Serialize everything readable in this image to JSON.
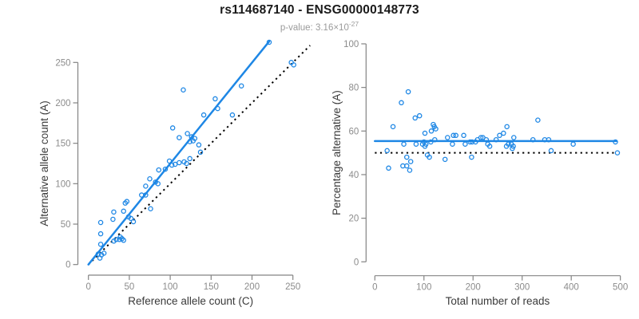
{
  "header": {
    "title": "rs114687140 - ENSG00000148773",
    "subtitle_prefix": "p-value: 3.16×10",
    "subtitle_exponent": "-27"
  },
  "colors": {
    "accent_blue": "#1E87E5",
    "reference_line_black": "#000000",
    "axis_line_gray": "#848484",
    "tick_label_gray": "#8C8C8C",
    "axis_title_dark": "#3A3A3A",
    "title_black": "#1A1A1A",
    "subtitle_gray": "#9B9B9B"
  },
  "chart_data": [
    {
      "type": "scatter",
      "name": "allele-counts-scatter",
      "xlabel": "Reference allele count (C)",
      "ylabel": "Alternative allele count (A)",
      "xlim": [
        0,
        265
      ],
      "ylim": [
        0,
        280
      ],
      "xticks": [
        0,
        50,
        100,
        150,
        200,
        250
      ],
      "yticks": [
        0,
        50,
        100,
        150,
        200,
        250
      ],
      "grid": false,
      "legend": null,
      "points": [
        [
          12,
          13
        ],
        [
          16,
          12
        ],
        [
          19,
          14
        ],
        [
          14,
          8
        ],
        [
          15,
          25
        ],
        [
          15,
          38
        ],
        [
          15,
          52
        ],
        [
          31,
          29
        ],
        [
          34,
          31
        ],
        [
          38,
          31
        ],
        [
          41,
          32
        ],
        [
          43,
          30
        ],
        [
          39,
          34
        ],
        [
          30,
          56
        ],
        [
          31,
          65
        ],
        [
          43,
          66
        ],
        [
          45,
          76
        ],
        [
          47,
          78
        ],
        [
          49,
          59
        ],
        [
          52,
          57
        ],
        [
          55,
          53
        ],
        [
          65,
          86
        ],
        [
          70,
          86
        ],
        [
          70,
          97
        ],
        [
          76,
          69
        ],
        [
          75,
          106
        ],
        [
          82,
          102
        ],
        [
          85,
          100
        ],
        [
          86,
          117
        ],
        [
          94,
          118
        ],
        [
          99,
          128
        ],
        [
          102,
          123
        ],
        [
          106,
          124
        ],
        [
          111,
          126
        ],
        [
          117,
          127
        ],
        [
          120,
          125
        ],
        [
          124,
          131
        ],
        [
          103,
          169
        ],
        [
          111,
          157
        ],
        [
          121,
          162
        ],
        [
          124,
          152
        ],
        [
          126,
          158
        ],
        [
          128,
          153
        ],
        [
          130,
          156
        ],
        [
          135,
          148
        ],
        [
          137,
          139
        ],
        [
          116,
          216
        ],
        [
          141,
          185
        ],
        [
          155,
          205
        ],
        [
          158,
          193
        ],
        [
          176,
          185
        ],
        [
          187,
          221
        ],
        [
          221,
          275
        ],
        [
          248,
          250
        ],
        [
          251,
          247
        ]
      ],
      "fit_line": {
        "x1": 0,
        "y1": 0,
        "x2": 221,
        "y2": 276,
        "style": "solid"
      },
      "identity_line": {
        "x1": 0,
        "y1": 0,
        "x2": 271,
        "y2": 271,
        "style": "dotted"
      }
    },
    {
      "type": "scatter",
      "name": "percentage-alternative-scatter",
      "xlabel": "Total number of reads",
      "ylabel": "Percentage alternative (A)",
      "xlim": [
        0,
        505
      ],
      "ylim": [
        0,
        100
      ],
      "xticks": [
        0,
        100,
        200,
        300,
        400,
        500
      ],
      "yticks": [
        0,
        20,
        40,
        60,
        80,
        100
      ],
      "grid": false,
      "legend": null,
      "points": [
        [
          25,
          51
        ],
        [
          28,
          43
        ],
        [
          37,
          62
        ],
        [
          54,
          73
        ],
        [
          68,
          78
        ],
        [
          57,
          44
        ],
        [
          59,
          54
        ],
        [
          65,
          48
        ],
        [
          65,
          44
        ],
        [
          71,
          42
        ],
        [
          73,
          46
        ],
        [
          82,
          66
        ],
        [
          84,
          54
        ],
        [
          91,
          67
        ],
        [
          97,
          54
        ],
        [
          100,
          55
        ],
        [
          102,
          53
        ],
        [
          104,
          54
        ],
        [
          102,
          59
        ],
        [
          107,
          49
        ],
        [
          111,
          48
        ],
        [
          114,
          55
        ],
        [
          115,
          60
        ],
        [
          119,
          63
        ],
        [
          121,
          62
        ],
        [
          124,
          61
        ],
        [
          122,
          56
        ],
        [
          143,
          47
        ],
        [
          148,
          57
        ],
        [
          158,
          54
        ],
        [
          160,
          58
        ],
        [
          165,
          58
        ],
        [
          181,
          58
        ],
        [
          184,
          54
        ],
        [
          194,
          55
        ],
        [
          197,
          48
        ],
        [
          198,
          55
        ],
        [
          205,
          55
        ],
        [
          209,
          56
        ],
        [
          216,
          57
        ],
        [
          220,
          57
        ],
        [
          227,
          56
        ],
        [
          230,
          54
        ],
        [
          234,
          53
        ],
        [
          247,
          56
        ],
        [
          254,
          58
        ],
        [
          262,
          59
        ],
        [
          269,
          62
        ],
        [
          268,
          53
        ],
        [
          272,
          54
        ],
        [
          278,
          54
        ],
        [
          280,
          52
        ],
        [
          282,
          53
        ],
        [
          283,
          57
        ],
        [
          322,
          56
        ],
        [
          332,
          65
        ],
        [
          346,
          56
        ],
        [
          354,
          56
        ],
        [
          359,
          51
        ],
        [
          404,
          54
        ],
        [
          490,
          55
        ],
        [
          494,
          50
        ]
      ],
      "fit_line": {
        "x1": 0,
        "y1": 55.4,
        "x2": 492,
        "y2": 55.4,
        "style": "solid"
      },
      "identity_line": {
        "x1": 0,
        "y1": 50,
        "x2": 490,
        "y2": 50,
        "style": "dotted"
      }
    }
  ]
}
